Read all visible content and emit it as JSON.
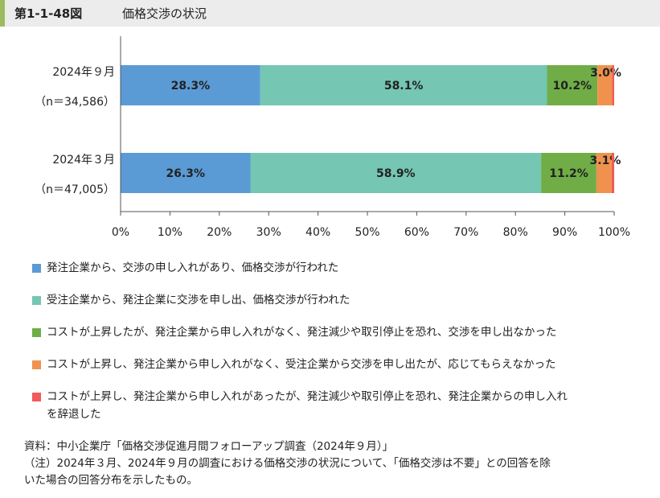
{
  "header": {
    "figure_number": "第1-1-48図",
    "title": "価格交渉の状況"
  },
  "chart_data": {
    "type": "bar",
    "orientation": "horizontal",
    "stacked": true,
    "title": "価格交渉の状況",
    "categories": [
      {
        "line1": "2024年９月",
        "line2": "（n＝34,586）"
      },
      {
        "line1": "2024年３月",
        "line2": "（n＝47,005）"
      }
    ],
    "series": [
      {
        "name": "発注企業から、交渉の申し入れがあり、価格交渉が行われた",
        "color": "#5b9bd5",
        "values": [
          28.3,
          26.3
        ],
        "labels": [
          "28.3%",
          "26.3%"
        ]
      },
      {
        "name": "受注企業から、発注企業に交渉を申し出、価格交渉が行われた",
        "color": "#75c6b3",
        "values": [
          58.1,
          58.9
        ],
        "labels": [
          "58.1%",
          "58.9%"
        ]
      },
      {
        "name": "コストが上昇したが、発注企業から申し入れがなく、発注減少や取引停止を恐れ、交渉を申し出なかった",
        "color": "#70ad47",
        "values": [
          10.2,
          11.2
        ],
        "labels": [
          "10.2%",
          "11.2%"
        ]
      },
      {
        "name": "コストが上昇し、発注企業から申し入れがなく、受注企業から交渉を申し出たが、応じてもらえなかった",
        "color": "#f0924e",
        "values": [
          3.0,
          3.1
        ],
        "labels": [
          "3.0%",
          "3.1%"
        ]
      },
      {
        "name_line1": "コストが上昇し、発注企業から申し入れがあったが、発注減少や取引停止を恐れ、発注企業からの申し入れ",
        "name_line2": "を辞退した",
        "color": "#f25a5a",
        "values": [
          0.4,
          0.5
        ],
        "labels": [
          "",
          ""
        ]
      }
    ],
    "xlim": [
      0,
      100
    ],
    "ticks": [
      "0%",
      "10%",
      "20%",
      "30%",
      "40%",
      "50%",
      "60%",
      "70%",
      "80%",
      "90%",
      "100%"
    ],
    "grid": false,
    "legend_position": "bottom"
  },
  "notes": {
    "source": "資料：中小企業庁「価格交渉促進月間フォローアップ調査（2024年９月）」",
    "note_line1": "（注）2024年３月、2024年９月の調査における価格交渉の状況について、「価格交渉は不要」との回答を除",
    "note_line2": "いた場合の回答分布を示したもの。"
  }
}
